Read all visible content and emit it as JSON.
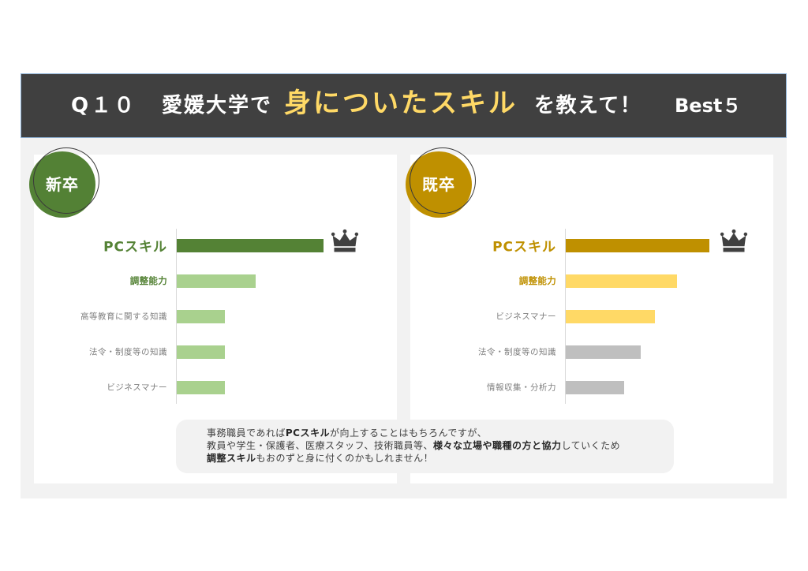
{
  "header": {
    "question_no": "Q１０",
    "prefix": "愛媛大学で",
    "highlight": "身についたスキル",
    "suffix": "を教えて！",
    "tag": "Best５"
  },
  "colors": {
    "header_bg": "#404040",
    "highlight": "#ffd966",
    "panel_bg": "#f2f2f2",
    "comment_bg": "#f2f2f2",
    "crown": "#404040",
    "label_gray": "#7f7f7f"
  },
  "icons": {
    "rank_one": "crown-icon"
  },
  "chart_data": [
    {
      "type": "bar",
      "orientation": "horizontal",
      "title": "新卒",
      "badge_color": "#538135",
      "label_color": "#548235",
      "categories": [
        "PCスキル",
        "調整能力",
        "高等教育に関する知識",
        "法令・制度等の知識",
        "ビジネスマナー"
      ],
      "values": [
        100,
        54,
        33,
        33,
        33
      ],
      "colors": [
        "#548235",
        "#a9d18e",
        "#a9d18e",
        "#a9d18e",
        "#a9d18e"
      ],
      "xlim": [
        0,
        100
      ],
      "xlabel": "",
      "ylabel": "",
      "grid": false
    },
    {
      "type": "bar",
      "orientation": "horizontal",
      "title": "既卒",
      "badge_color": "#bf9000",
      "label_color": "#bf9000",
      "categories": [
        "PCスキル",
        "調整能力",
        "ビジネスマナー",
        "法令・制度等の知識",
        "情報収集・分析力"
      ],
      "values": [
        98,
        76,
        61,
        51,
        40
      ],
      "colors": [
        "#bf9000",
        "#ffd966",
        "#ffd966",
        "#bfbfbf",
        "#bfbfbf"
      ],
      "xlim": [
        0,
        100
      ],
      "xlabel": "",
      "ylabel": "",
      "grid": false
    }
  ],
  "comment": {
    "lines": [
      [
        {
          "text": "事務職員であれば",
          "bold": false
        },
        {
          "text": "PCスキル",
          "bold": true
        },
        {
          "text": "が向上することはもちろんですが、",
          "bold": false
        }
      ],
      [
        {
          "text": "教員や学生・保護者、医療スタッフ、技術職員等、",
          "bold": false
        },
        {
          "text": "様々な立場や職種の方と協力",
          "bold": true
        },
        {
          "text": "していくため",
          "bold": false
        }
      ],
      [
        {
          "text": "調整スキル",
          "bold": true
        },
        {
          "text": "もおのずと身に付くのかもしれません！",
          "bold": false
        }
      ]
    ]
  }
}
